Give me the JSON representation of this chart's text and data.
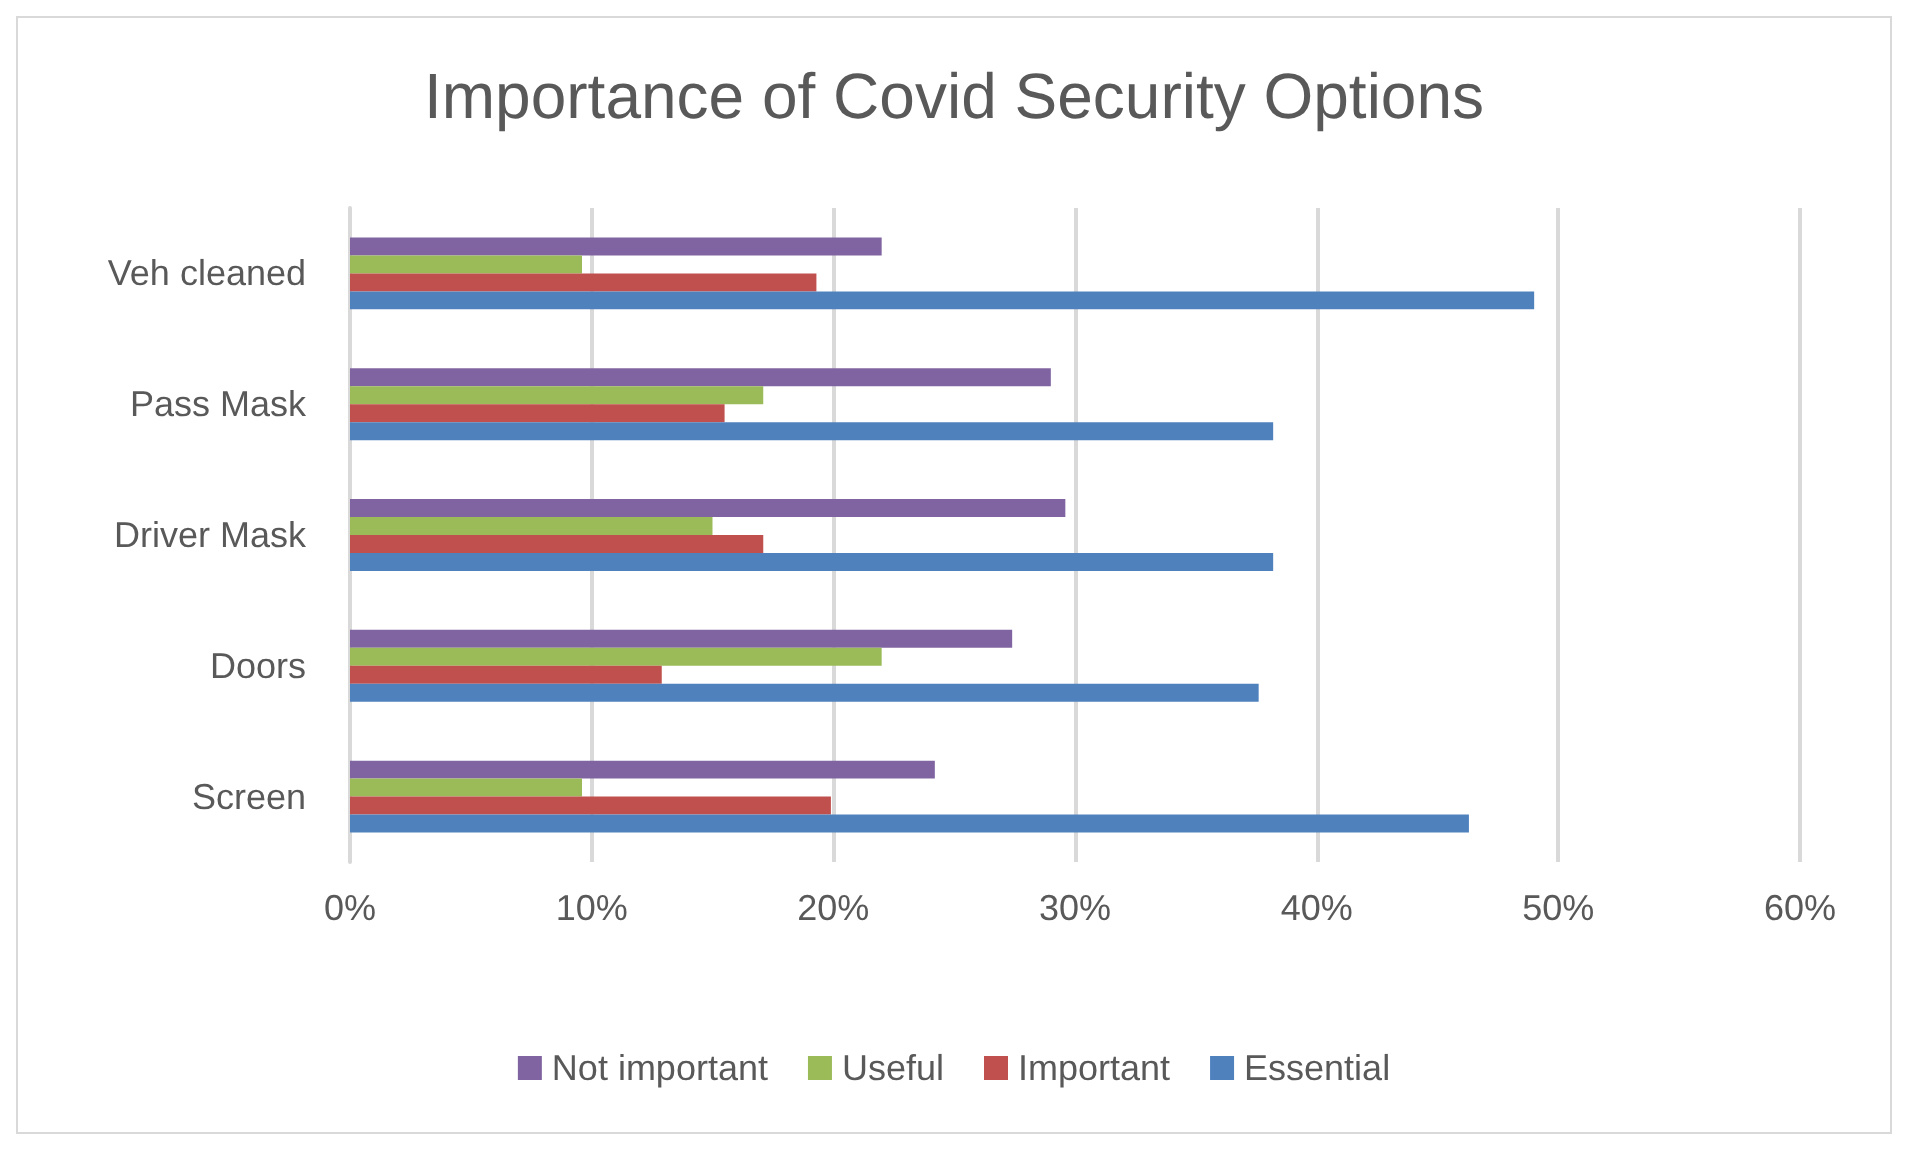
{
  "chart_data": {
    "type": "bar",
    "orientation": "horizontal",
    "title": "Importance of Covid Security Options",
    "categories": [
      "Veh cleaned",
      "Pass Mask",
      "Driver Mask",
      "Doors",
      "Screen"
    ],
    "series": [
      {
        "name": "Not important",
        "color": "#8064a2",
        "values": [
          22.0,
          29.0,
          29.6,
          27.4,
          24.2
        ]
      },
      {
        "name": "Useful",
        "color": "#9bbb59",
        "values": [
          9.6,
          17.1,
          15.0,
          22.0,
          9.6
        ]
      },
      {
        "name": "Important",
        "color": "#c0504d",
        "values": [
          19.3,
          15.5,
          17.1,
          12.9,
          19.9
        ]
      },
      {
        "name": "Essential",
        "color": "#4f81bd",
        "values": [
          49.0,
          38.2,
          38.2,
          37.6,
          46.3
        ]
      }
    ],
    "xlim": [
      0,
      60
    ],
    "xticks": [
      {
        "value": 0,
        "label": "0%"
      },
      {
        "value": 10,
        "label": "10%"
      },
      {
        "value": 20,
        "label": "20%"
      },
      {
        "value": 30,
        "label": "30%"
      },
      {
        "value": 40,
        "label": "40%"
      },
      {
        "value": 50,
        "label": "50%"
      },
      {
        "value": 60,
        "label": "60%"
      }
    ],
    "grid": "x",
    "legend": "bottom"
  }
}
